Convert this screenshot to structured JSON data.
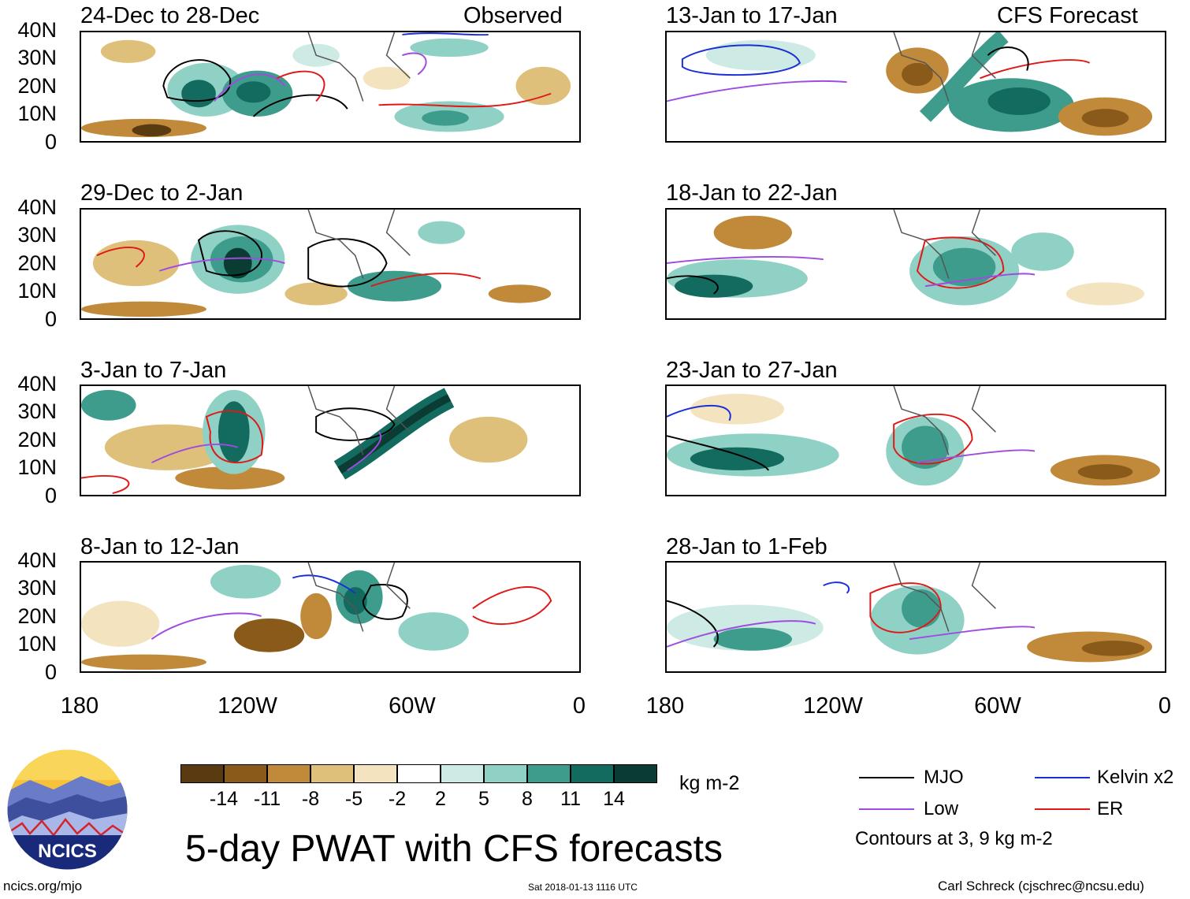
{
  "header": {
    "left_tag": "Observed",
    "right_tag": "CFS Forecast"
  },
  "panels": {
    "observed": [
      {
        "title": "24-Dec to 28-Dec"
      },
      {
        "title": "29-Dec to 2-Jan"
      },
      {
        "title": "3-Jan to 7-Jan"
      },
      {
        "title": "8-Jan to 12-Jan"
      }
    ],
    "forecast": [
      {
        "title": "13-Jan to 17-Jan"
      },
      {
        "title": "18-Jan to 22-Jan"
      },
      {
        "title": "23-Jan to 27-Jan"
      },
      {
        "title": "28-Jan to 1-Feb"
      }
    ]
  },
  "axes": {
    "lat_labels": [
      "40N",
      "30N",
      "20N",
      "10N",
      "0"
    ],
    "lon_labels": [
      "180",
      "120W",
      "60W",
      "0"
    ]
  },
  "colorbar": {
    "labels": [
      "-14",
      "-11",
      "-8",
      "-5",
      "-2",
      "2",
      "5",
      "8",
      "11",
      "14"
    ],
    "colors": [
      "#5a3a10",
      "#8a5a1a",
      "#c08a3a",
      "#dfc07a",
      "#f3e4bf",
      "#ffffff",
      "#cdebe4",
      "#8fd1c4",
      "#3e9c8c",
      "#126b5e",
      "#0a3c33"
    ],
    "units": "kg m-2"
  },
  "legend": {
    "items": [
      {
        "label": "MJO",
        "color": "#000000"
      },
      {
        "label": "Kelvin x2",
        "color": "#1a2fd6"
      },
      {
        "label": "Low",
        "color": "#a04be0"
      },
      {
        "label": "ER",
        "color": "#e01818"
      }
    ],
    "note": "Contours at 3, 9 kg m-2"
  },
  "main_title": "5-day PWAT with CFS forecasts",
  "logo": {
    "text": "NCICS"
  },
  "footer": {
    "url": "ncics.org/mjo",
    "timestamp": "Sat 2018-01-13 1116 UTC",
    "credit": "Carl Schreck (cjschrec@ncsu.edu)"
  }
}
